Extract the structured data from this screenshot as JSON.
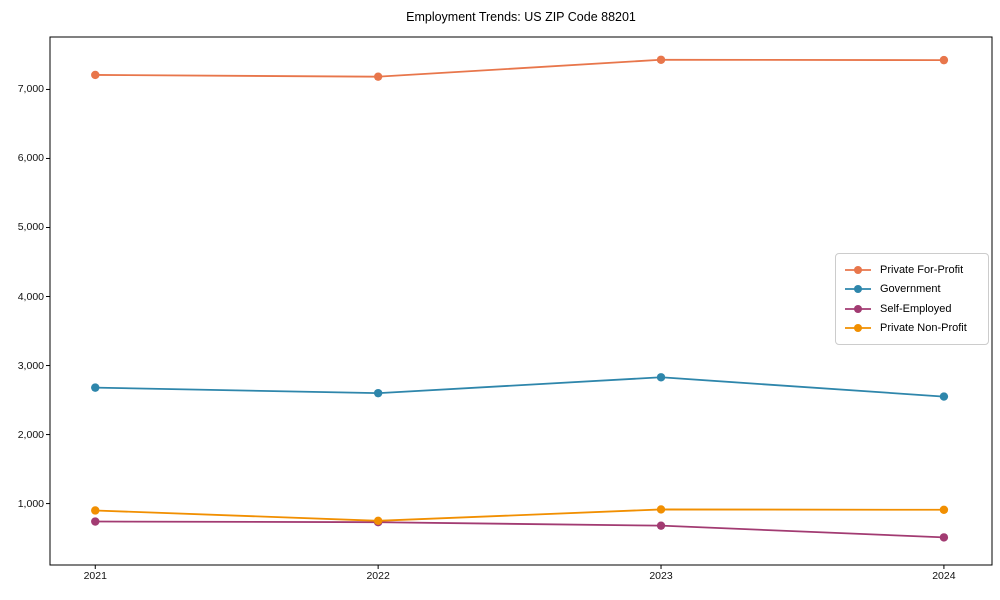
{
  "title": "Employment Trends: US ZIP Code 88201",
  "chart_data": {
    "type": "line",
    "title": "Employment Trends: US ZIP Code 88201",
    "xlabel": "",
    "ylabel": "",
    "x": [
      2021,
      2022,
      2023,
      2024
    ],
    "categories": [
      "2021",
      "2022",
      "2023",
      "2024"
    ],
    "series": [
      {
        "name": "Private For-Profit",
        "color": "#E8764B",
        "values": [
          7210,
          7185,
          7430,
          7425
        ]
      },
      {
        "name": "Government",
        "color": "#2E86AB",
        "values": [
          2680,
          2600,
          2830,
          2550
        ]
      },
      {
        "name": "Self-Employed",
        "color": "#A23B72",
        "values": [
          740,
          730,
          680,
          510
        ]
      },
      {
        "name": "Private Non-Profit",
        "color": "#F18F01",
        "values": [
          900,
          750,
          915,
          910
        ]
      }
    ],
    "yticks": [
      1000,
      2000,
      3000,
      4000,
      5000,
      6000,
      7000
    ],
    "ytick_labels": [
      "1,000",
      "2,000",
      "3,000",
      "4,000",
      "5,000",
      "6,000",
      "7,000"
    ],
    "xlim": [
      2020.84,
      2024.17
    ],
    "ylim": [
      110,
      7760
    ],
    "grid": false,
    "legend_position": "right",
    "marker": "o"
  }
}
